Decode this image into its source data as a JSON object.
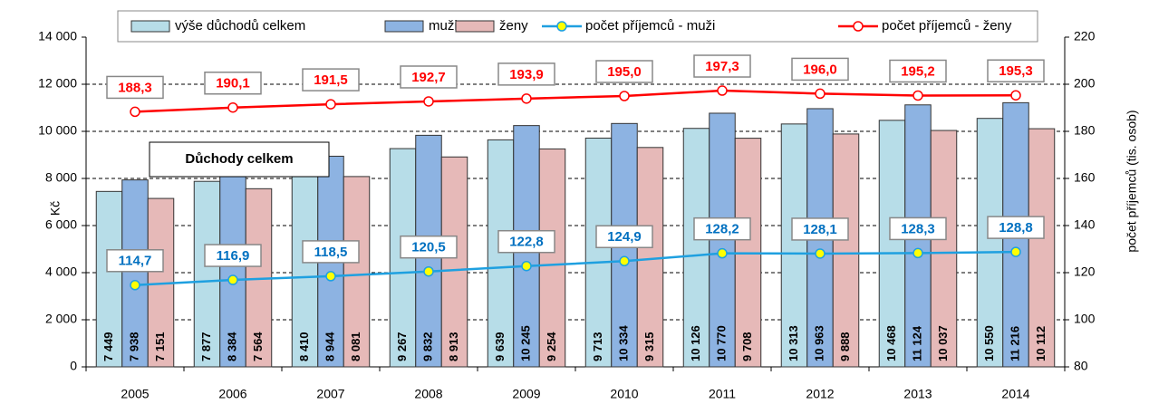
{
  "chart_data": {
    "type": "combo",
    "annotation": "Důchody celkem",
    "y_label": "Kč",
    "y2_label": "počet příjemců (tis. osob)",
    "categories": [
      "2005",
      "2006",
      "2007",
      "2008",
      "2009",
      "2010",
      "2011",
      "2012",
      "2013",
      "2014"
    ],
    "series": [
      {
        "name": "výše důchodů celkem",
        "type": "bar",
        "color": "#b7dde8",
        "values": [
          7449,
          7877,
          8410,
          9267,
          9639,
          9713,
          10126,
          10313,
          10468,
          10550
        ],
        "value_labels": [
          "7 449",
          "7 877",
          "8 410",
          "9 267",
          "9 639",
          "9 713",
          "10 126",
          "10 313",
          "10 468",
          "10 550"
        ]
      },
      {
        "name": "muži",
        "type": "bar",
        "color": "#8db3e2",
        "values": [
          7938,
          8384,
          8944,
          9832,
          10245,
          10334,
          10770,
          10963,
          11124,
          11216
        ],
        "value_labels": [
          "7 938",
          "8 384",
          "8 944",
          "9 832",
          "10 245",
          "10 334",
          "10 770",
          "10 963",
          "11 124",
          "11 216"
        ]
      },
      {
        "name": "ženy",
        "type": "bar",
        "color": "#e6b9b8",
        "values": [
          7151,
          7564,
          8081,
          8913,
          9254,
          9315,
          9708,
          9888,
          10037,
          10112
        ],
        "value_labels": [
          "7 151",
          "7 564",
          "8 081",
          "8 913",
          "9 254",
          "9 315",
          "9 708",
          "9 888",
          "10 037",
          "10 112"
        ]
      },
      {
        "name": "počet příjemců - muži",
        "type": "line",
        "axis": "y2",
        "color": "#1fa0e0",
        "marker_color": "#ffff00",
        "label_color": "#0070c0",
        "values": [
          114.7,
          116.9,
          118.5,
          120.5,
          122.8,
          124.9,
          128.2,
          128.1,
          128.3,
          128.8
        ],
        "value_labels": [
          "114,7",
          "116,9",
          "118,5",
          "120,5",
          "122,8",
          "124,9",
          "128,2",
          "128,1",
          "128,3",
          "128,8"
        ]
      },
      {
        "name": "počet příjemců - ženy",
        "type": "line",
        "axis": "y2",
        "color": "#ff0000",
        "marker_color": "#ffffff",
        "label_color": "#ff0000",
        "values": [
          188.3,
          190.1,
          191.5,
          192.7,
          193.9,
          195.0,
          197.3,
          196.0,
          195.2,
          195.3
        ],
        "value_labels": [
          "188,3",
          "190,1",
          "191,5",
          "192,7",
          "193,9",
          "195,0",
          "197,3",
          "196,0",
          "195,2",
          "195,3"
        ]
      }
    ],
    "ylim": [
      0,
      14000
    ],
    "yticks": [
      0,
      {
        "value": 2000,
        "label": "2 000"
      },
      {
        "value": 4000,
        "label": "4 000"
      },
      {
        "value": 6000,
        "label": "6 000"
      },
      {
        "value": 8000,
        "label": "8 000"
      },
      {
        "value": 10000,
        "label": "10 000"
      },
      {
        "value": 12000,
        "label": "12 000"
      },
      {
        "value": 14000,
        "label": "14 000"
      }
    ],
    "y2lim": [
      80,
      220
    ],
    "y2ticks": [
      80,
      100,
      120,
      140,
      160,
      180,
      200,
      220
    ],
    "grid": true
  }
}
